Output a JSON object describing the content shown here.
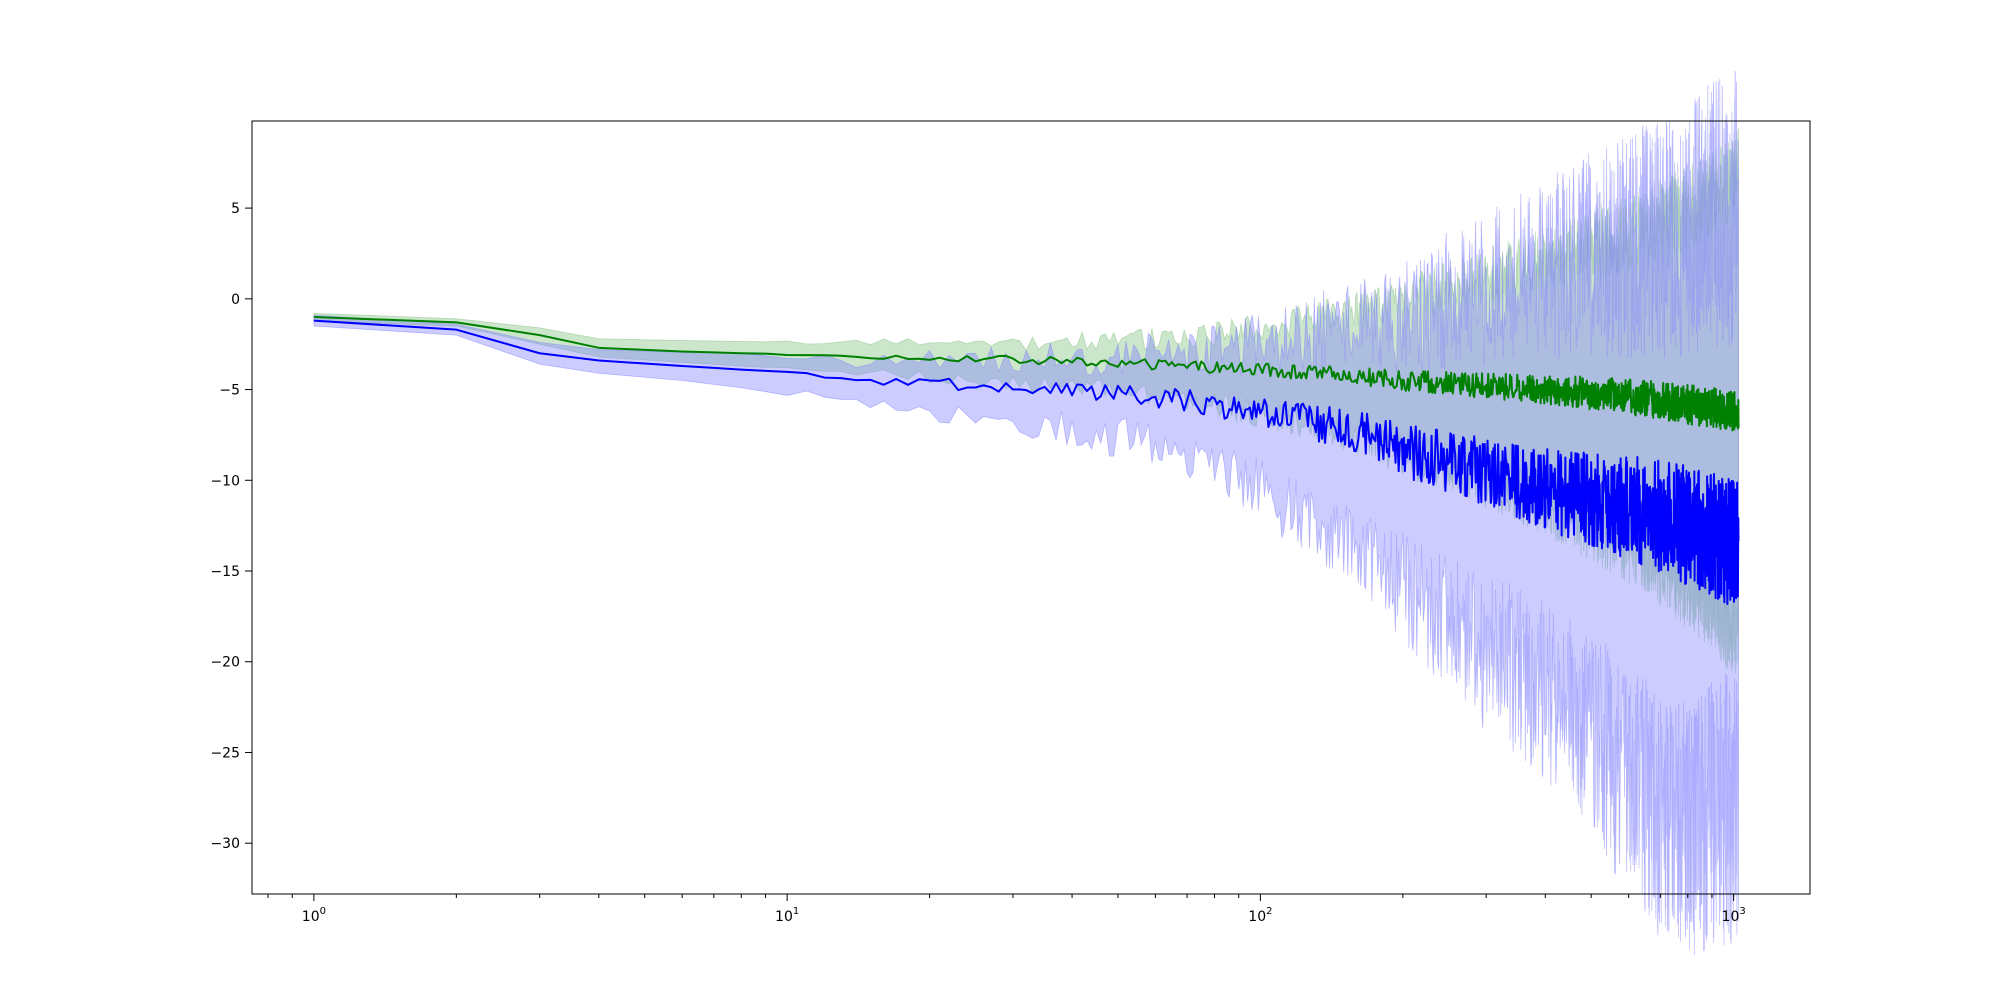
{
  "chart_data": {
    "type": "line",
    "title": "",
    "xlabel": "",
    "ylabel": "",
    "x_scale": "log",
    "xlim": [
      0.74,
      1450
    ],
    "ylim": [
      -32.8,
      9.8
    ],
    "grid": false,
    "legend": "none",
    "x_ticks": [
      {
        "value": 1,
        "base": "10",
        "exp": "0"
      },
      {
        "value": 10,
        "base": "10",
        "exp": "1"
      },
      {
        "value": 100,
        "base": "10",
        "exp": "2"
      },
      {
        "value": 1000,
        "base": "10",
        "exp": "3"
      }
    ],
    "y_ticks": [
      {
        "value": 5,
        "label": "5"
      },
      {
        "value": 0,
        "label": "0"
      },
      {
        "value": -5,
        "label": "−5"
      },
      {
        "value": -10,
        "label": "−10"
      },
      {
        "value": -15,
        "label": "−15"
      },
      {
        "value": -20,
        "label": "−20"
      },
      {
        "value": -25,
        "label": "−25"
      },
      {
        "value": -30,
        "label": "−30"
      }
    ],
    "x": [
      1,
      2,
      3,
      4,
      6,
      8,
      11,
      15,
      20,
      30,
      45,
      70,
      100,
      150,
      200,
      300,
      400,
      500,
      600,
      700,
      800,
      900,
      1000,
      1024
    ],
    "series": [
      {
        "color": "#008000",
        "band_color": "#80c080",
        "mean": [
          -1.0,
          -1.3,
          -2.0,
          -2.7,
          -2.9,
          -3.0,
          -3.1,
          -3.2,
          -3.25,
          -3.35,
          -3.5,
          -3.7,
          -3.9,
          -4.2,
          -4.5,
          -4.8,
          -5.0,
          -5.2,
          -5.4,
          -5.6,
          -5.8,
          -6.0,
          -6.2,
          -6.2
        ],
        "lower": [
          -1.2,
          -1.5,
          -2.5,
          -3.2,
          -3.5,
          -3.7,
          -3.9,
          -4.1,
          -4.3,
          -4.6,
          -5.0,
          -5.6,
          -6.3,
          -7.4,
          -8.5,
          -10.0,
          -11.3,
          -12.5,
          -13.6,
          -14.7,
          -15.8,
          -17.0,
          -18.5,
          -18.5
        ],
        "upper": [
          -0.8,
          -1.1,
          -1.6,
          -2.2,
          -2.3,
          -2.35,
          -2.4,
          -2.45,
          -2.5,
          -2.4,
          -2.3,
          -2.1,
          -1.6,
          -0.8,
          0.0,
          1.2,
          2.2,
          3.0,
          3.6,
          4.3,
          5.0,
          5.8,
          6.8,
          7.5
        ],
        "noise": [
          0.0,
          0.0,
          0.0,
          0.0,
          0.0,
          0.0,
          0.05,
          0.1,
          0.15,
          0.2,
          0.25,
          0.3,
          0.35,
          0.45,
          0.55,
          0.7,
          0.8,
          0.9,
          1.0,
          1.05,
          1.1,
          1.1,
          1.1,
          1.1
        ]
      },
      {
        "color": "#0000ff",
        "band_color": "#8080ff",
        "mean": [
          -1.2,
          -1.7,
          -3.0,
          -3.4,
          -3.7,
          -3.9,
          -4.1,
          -4.6,
          -4.6,
          -4.9,
          -5.2,
          -5.6,
          -6.3,
          -7.1,
          -8.3,
          -9.5,
          -10.5,
          -11.0,
          -11.5,
          -12.0,
          -12.5,
          -13.0,
          -13.5,
          -13.5
        ],
        "lower": [
          -1.5,
          -2.0,
          -3.6,
          -4.1,
          -4.5,
          -4.9,
          -5.3,
          -5.9,
          -6.2,
          -6.9,
          -7.4,
          -8.5,
          -10.5,
          -13.5,
          -16.0,
          -19.5,
          -21.5,
          -24.0,
          -26.5,
          -28.5,
          -29.0,
          -28.5,
          -28.0,
          -27.5
        ],
        "upper": [
          -0.9,
          -1.4,
          -2.4,
          -2.8,
          -2.95,
          -3.0,
          -3.2,
          -3.5,
          -3.4,
          -3.2,
          -3.2,
          -3.0,
          -2.5,
          -1.5,
          -1.0,
          0.5,
          1.5,
          2.5,
          3.0,
          3.5,
          4.0,
          4.5,
          5.0,
          5.0
        ],
        "noise": [
          0.0,
          0.0,
          0.0,
          0.0,
          0.0,
          0.0,
          0.1,
          0.2,
          0.3,
          0.4,
          0.5,
          0.6,
          0.8,
          1.1,
          1.5,
          2.0,
          2.3,
          2.6,
          2.9,
          3.1,
          3.3,
          3.4,
          3.5,
          3.5
        ]
      }
    ]
  }
}
